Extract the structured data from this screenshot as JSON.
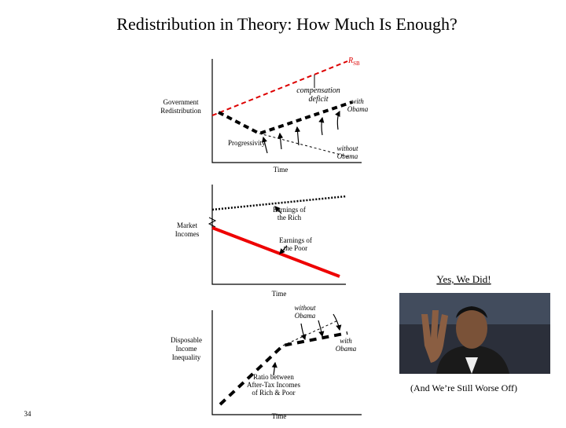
{
  "title": "Redistribution in Theory:  How Much Is Enough?",
  "panel_top": {
    "r_label": "R",
    "r_subscript": "SB",
    "compensation_deficit": [
      "compensation",
      "deficit"
    ],
    "with_obama": [
      "with",
      "Obama"
    ],
    "y_label": [
      "Government",
      "Redistribution"
    ],
    "progressivity": "Progressivity",
    "without_obama": [
      "without",
      "Obama"
    ],
    "x_label": "Time"
  },
  "panel_middle": {
    "y_label": [
      "Market",
      "Incomes"
    ],
    "earnings_rich": [
      "Earnings of",
      "the Rich"
    ],
    "earnings_poor": [
      "Earnings of",
      "the Poor"
    ],
    "x_label": "Time"
  },
  "photo_heading": "Yes, We Did!",
  "panel_bottom": {
    "without_obama": [
      "without",
      "Obama"
    ],
    "with_obama": [
      "with",
      "Obama"
    ],
    "y_label": [
      "Disposable",
      "Income",
      "Inequality"
    ],
    "ratio": [
      "Ratio between",
      "After-Tax Incomes",
      "of Rich & Poor"
    ],
    "x_label": "Time"
  },
  "photo_caption": "(And We’re Still Worse Off)",
  "slide_number": "34"
}
